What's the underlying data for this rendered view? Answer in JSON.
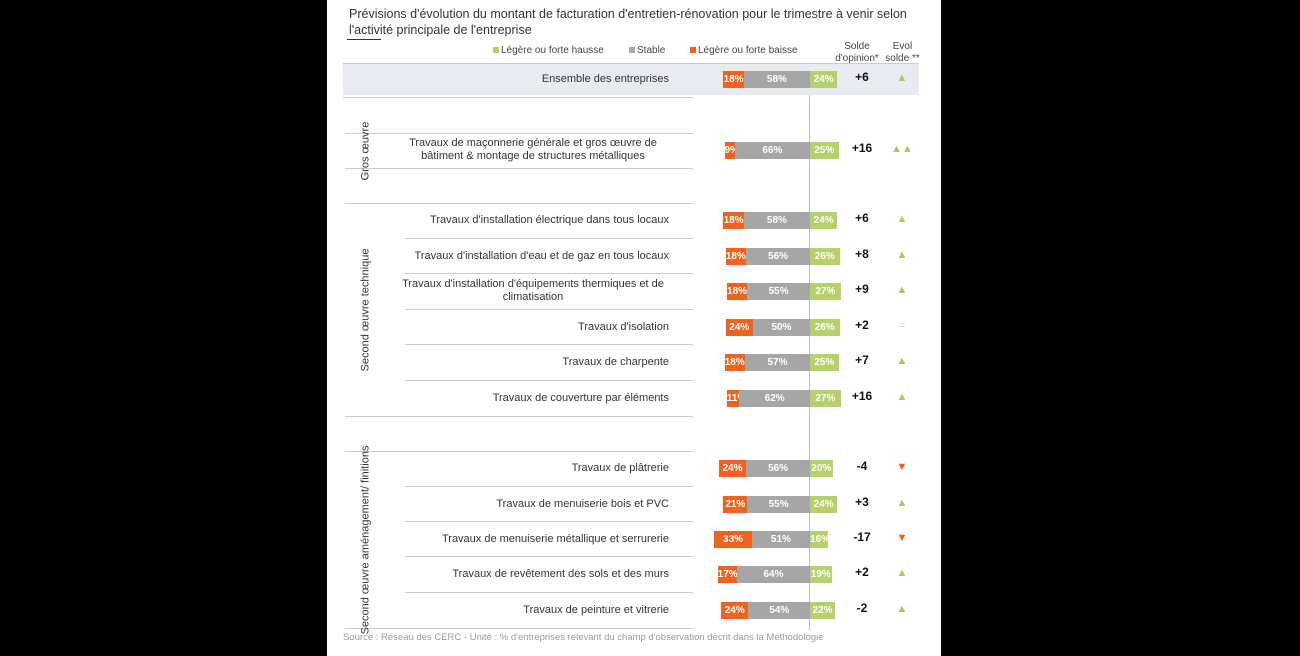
{
  "title": "Prévisions d'évolution du montant de facturation d'entretien-rénovation pour le trimestre à venir selon l'activité principale de l'entreprise",
  "source": "Source : Réseau des CERC - Unité : % d'entreprises relevant du champ d'observation décrit dans la Méthodologie",
  "colors": {
    "hausse": "#b5d16a",
    "stable": "#a6a6a6",
    "baisse": "#f0621e",
    "up": "#a9c866",
    "down": "#f0621e",
    "eq": "#c9dc9a",
    "highlight": "#e8ebef"
  },
  "chart_data": {
    "type": "bar",
    "stacked": "diverging",
    "legend": [
      {
        "key": "hausse",
        "label": "Légère ou forte hausse"
      },
      {
        "key": "stable",
        "label": "Stable"
      },
      {
        "key": "baisse",
        "label": "Légère ou forte baisse"
      }
    ],
    "legend_position": "top",
    "columns": {
      "solde": "Solde d'opinion*",
      "evol": "Evol solde **"
    },
    "groups": [
      {
        "label": "",
        "rows": [
          {
            "label": "Ensemble des entreprises",
            "baisse": 18,
            "stable": 58,
            "hausse": 24,
            "solde": "+6",
            "evol": "▲",
            "evol_dir": "up",
            "highlight": true
          }
        ]
      },
      {
        "label": "Gros œuvre",
        "rows": [
          {
            "label": "Travaux de maçonnerie générale et gros œuvre de bâtiment & montage de structures métalliques",
            "baisse": 9,
            "stable": 66,
            "hausse": 25,
            "solde": "+16",
            "evol": "▲▲",
            "evol_dir": "up"
          }
        ]
      },
      {
        "label": "Second œuvre technique",
        "rows": [
          {
            "label": "Travaux d'installation électrique dans tous locaux",
            "baisse": 18,
            "stable": 58,
            "hausse": 24,
            "solde": "+6",
            "evol": "▲",
            "evol_dir": "up"
          },
          {
            "label": "Travaux d'installation d'eau et de gaz en tous locaux",
            "baisse": 18,
            "stable": 56,
            "hausse": 26,
            "solde": "+8",
            "evol": "▲",
            "evol_dir": "up"
          },
          {
            "label": "Travaux d'installation d'équipements thermiques et de climatisation",
            "baisse": 18,
            "stable": 55,
            "hausse": 27,
            "solde": "+9",
            "evol": "▲",
            "evol_dir": "up"
          },
          {
            "label": "Travaux d'isolation",
            "baisse": 24,
            "stable": 50,
            "hausse": 26,
            "solde": "+2",
            "evol": "=",
            "evol_dir": "eq"
          },
          {
            "label": "Travaux de charpente",
            "baisse": 18,
            "stable": 57,
            "hausse": 25,
            "solde": "+7",
            "evol": "▲",
            "evol_dir": "up"
          },
          {
            "label": "Travaux de couverture par éléments",
            "baisse": 11,
            "stable": 62,
            "hausse": 27,
            "solde": "+16",
            "evol": "▲",
            "evol_dir": "up"
          }
        ]
      },
      {
        "label": "Second œuvre aménagement/ finitions",
        "rows": [
          {
            "label": "Travaux de plâtrerie",
            "baisse": 24,
            "stable": 56,
            "hausse": 20,
            "solde": "-4",
            "evol": "▼",
            "evol_dir": "down"
          },
          {
            "label": "Travaux de menuiserie bois et PVC",
            "baisse": 21,
            "stable": 55,
            "hausse": 24,
            "solde": "+3",
            "evol": "▲",
            "evol_dir": "up"
          },
          {
            "label": "Travaux de menuiserie métallique et serrurerie",
            "baisse": 33,
            "stable": 51,
            "hausse": 16,
            "solde": "-17",
            "evol": "▼",
            "evol_dir": "down"
          },
          {
            "label": "Travaux de revêtement des sols et des murs",
            "baisse": 17,
            "stable": 64,
            "hausse": 19,
            "solde": "+2",
            "evol": "▲",
            "evol_dir": "up"
          },
          {
            "label": "Travaux de peinture et vitrerie",
            "baisse": 24,
            "stable": 54,
            "hausse": 22,
            "solde": "-2",
            "evol": "▲",
            "evol_dir": "up"
          }
        ]
      }
    ]
  }
}
